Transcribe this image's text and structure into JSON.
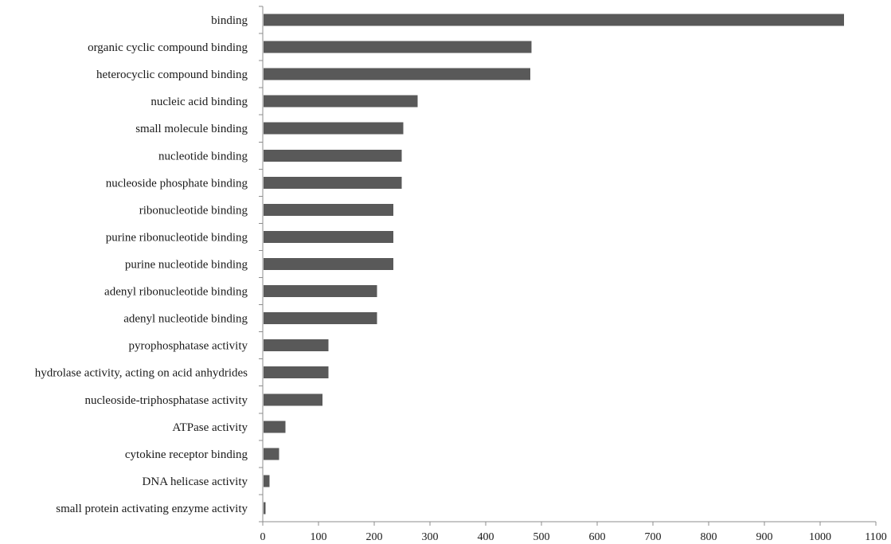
{
  "chart_data": {
    "type": "bar",
    "orientation": "horizontal",
    "categories": [
      "binding",
      "organic cyclic compound binding",
      "heterocyclic compound binding",
      "nucleic acid binding",
      "small molecule binding",
      "nucleotide binding",
      "nucleoside phosphate binding",
      "ribonucleotide binding",
      "purine ribonucleotide binding",
      "purine nucleotide binding",
      "adenyl ribonucleotide binding",
      "adenyl nucleotide binding",
      "pyrophosphatase activity",
      "hydrolase activity, acting on acid anhydrides",
      "nucleoside-triphosphatase activity",
      "ATPase activity",
      "cytokine receptor binding",
      "DNA helicase activity",
      "small protein activating enzyme activity"
    ],
    "values": [
      1043,
      482,
      480,
      278,
      252,
      249,
      249,
      234,
      234,
      234,
      205,
      205,
      118,
      118,
      107,
      41,
      29,
      12,
      5
    ],
    "xlim": [
      0,
      1100
    ],
    "xticks": [
      "0",
      "100",
      "200",
      "300",
      "400",
      "500",
      "600",
      "700",
      "800",
      "900",
      "1000",
      "1100"
    ],
    "title": "",
    "xlabel": "",
    "ylabel": "",
    "grid": false,
    "legend": "none",
    "bar_color": "#595959",
    "axis_color": "#8c8c8c",
    "text_color": "#1a1a1a"
  }
}
